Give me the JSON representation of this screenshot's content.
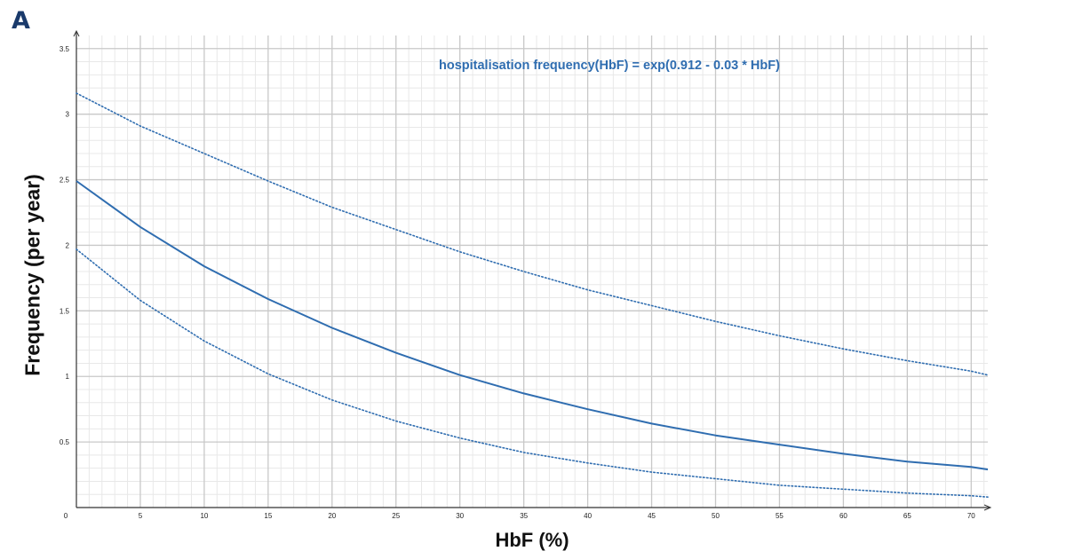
{
  "panel_label": "A",
  "colors": {
    "accent": "#2f6db0",
    "panel_label": "#1a3a6b",
    "grid_major": "#c8c8c8",
    "grid_minor": "#e8e8e8",
    "axis": "#333333"
  },
  "chart_data": {
    "type": "line",
    "title": "",
    "annotation": "hospitalisation frequency(HbF) = exp(0.912 - 0.03 * HbF)",
    "xlabel": "HbF (%)",
    "ylabel": "Frequency (per year)",
    "xlim": [
      0,
      71.3
    ],
    "ylim": [
      0,
      3.6
    ],
    "x_ticks": [
      0,
      5,
      10,
      15,
      20,
      25,
      30,
      35,
      40,
      45,
      50,
      55,
      60,
      65,
      70
    ],
    "y_ticks": [
      0.5,
      1,
      1.5,
      2,
      2.5,
      3,
      3.5
    ],
    "grid": true,
    "series": [
      {
        "style": "solid",
        "x": [
          0,
          5,
          10,
          15,
          20,
          25,
          30,
          35,
          40,
          45,
          50,
          55,
          60,
          65,
          70,
          71.3
        ],
        "y": [
          2.49,
          2.14,
          1.84,
          1.59,
          1.37,
          1.18,
          1.01,
          0.87,
          0.75,
          0.64,
          0.55,
          0.48,
          0.41,
          0.35,
          0.31,
          0.29
        ]
      },
      {
        "style": "dotted",
        "x": [
          0,
          5,
          10,
          15,
          20,
          25,
          30,
          35,
          40,
          45,
          50,
          55,
          60,
          65,
          70,
          71.3
        ],
        "y": [
          3.16,
          2.91,
          2.7,
          2.49,
          2.29,
          2.12,
          1.95,
          1.8,
          1.66,
          1.54,
          1.42,
          1.31,
          1.21,
          1.12,
          1.04,
          1.01
        ]
      },
      {
        "style": "dotted",
        "x": [
          0,
          5,
          10,
          15,
          20,
          25,
          30,
          35,
          40,
          45,
          50,
          55,
          60,
          65,
          70,
          71.3
        ],
        "y": [
          1.97,
          1.58,
          1.27,
          1.02,
          0.82,
          0.66,
          0.53,
          0.42,
          0.34,
          0.27,
          0.22,
          0.17,
          0.14,
          0.11,
          0.09,
          0.08
        ]
      }
    ]
  }
}
